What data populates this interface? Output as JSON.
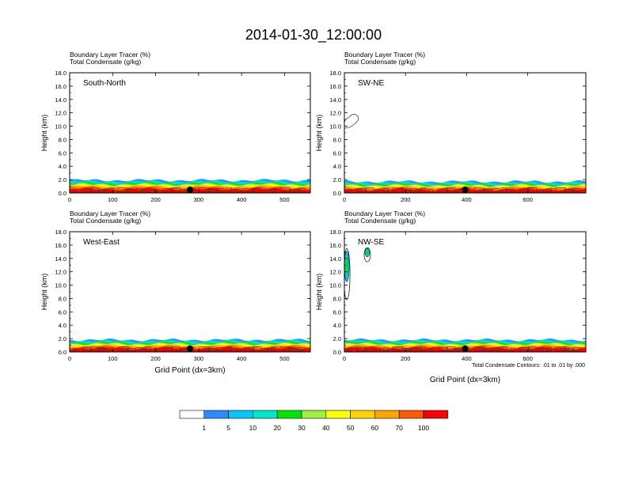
{
  "figure_title": "2014-01-30_12:00:00",
  "footnote": "Total Condensate Contours: .01 to .01 by .000",
  "legend": {
    "colors": [
      "#ffffff",
      "#2b8cff",
      "#00c8ff",
      "#00e6c8",
      "#00e600",
      "#a0f040",
      "#ffff00",
      "#ffd200",
      "#ffa500",
      "#ff5a00",
      "#ff0000"
    ],
    "labels": [
      "1",
      "5",
      "10",
      "20",
      "30",
      "40",
      "50",
      "60",
      "70",
      "100"
    ]
  },
  "chart_data": [
    {
      "type": "contour-fill",
      "panel": "South-North",
      "title_line1": "Boundary Layer Tracer   (%)",
      "title_line2": "Total Condensate   (g/kg)",
      "label": "South-North",
      "ylabel": "Height (km)",
      "xlabel": "",
      "yticks": [
        "0.0",
        "2.0",
        "4.0",
        "6.0",
        "8.0",
        "10.0",
        "12.0",
        "14.0",
        "16.0",
        "18.0"
      ],
      "xticks": [
        "0",
        "100",
        "200",
        "300",
        "400",
        "500"
      ],
      "xlim": [
        0,
        560
      ],
      "ylim": [
        0,
        18
      ],
      "marker_x": 280,
      "bl_top_km": 1.9,
      "cloud_features": []
    },
    {
      "type": "contour-fill",
      "panel": "SW-NE",
      "title_line1": "Boundary Layer Tracer   (%)",
      "title_line2": "Total Condensate   (g/kg)",
      "label": "SW-NE",
      "ylabel": "Height (km)",
      "xlabel": "",
      "yticks": [
        "0.0",
        "2.0",
        "4.0",
        "6.0",
        "8.0",
        "10.0",
        "12.0",
        "14.0",
        "16.0",
        "18.0"
      ],
      "xticks": [
        "0",
        "200",
        "400",
        "600"
      ],
      "xlim": [
        0,
        790
      ],
      "ylim": [
        0,
        18
      ],
      "marker_x": 395,
      "bl_top_km": 1.7,
      "cloud_features": [
        {
          "x": 20,
          "ymin_km": 9.7,
          "ymax_km": 12.2,
          "kind": "outline"
        }
      ]
    },
    {
      "type": "contour-fill",
      "panel": "West-East",
      "title_line1": "Boundary Layer Tracer   (%)",
      "title_line2": "Total Condensate   (g/kg)",
      "label": "West-East",
      "ylabel": "Height (km)",
      "xlabel": "Grid Point (dx=3km)",
      "yticks": [
        "0.0",
        "2.0",
        "4.0",
        "6.0",
        "8.0",
        "10.0",
        "12.0",
        "14.0",
        "16.0",
        "18.0"
      ],
      "xticks": [
        "0",
        "100",
        "200",
        "300",
        "400",
        "500"
      ],
      "xlim": [
        0,
        560
      ],
      "ylim": [
        0,
        18
      ],
      "marker_x": 280,
      "bl_top_km": 1.8,
      "cloud_features": []
    },
    {
      "type": "contour-fill",
      "panel": "NW-SE",
      "title_line1": "Boundary Layer Tracer   (%)",
      "title_line2": "Total Condensate   (g/kg)",
      "label": "NW-SE",
      "ylabel": "Height (km)",
      "xlabel": "Grid Point (dx=3km)",
      "yticks": [
        "0.0",
        "2.0",
        "4.0",
        "6.0",
        "8.0",
        "10.0",
        "12.0",
        "14.0",
        "16.0",
        "18.0"
      ],
      "xticks": [
        "0",
        "200",
        "400",
        "600"
      ],
      "xlim": [
        0,
        790
      ],
      "ylim": [
        0,
        18
      ],
      "marker_x": 395,
      "bl_top_km": 1.8,
      "cloud_features": [
        {
          "x": 8,
          "ymin_km": 7.8,
          "ymax_km": 15.5,
          "kind": "filled"
        },
        {
          "x": 75,
          "ymin_km": 13.5,
          "ymax_km": 15.6,
          "kind": "filled"
        }
      ]
    }
  ]
}
